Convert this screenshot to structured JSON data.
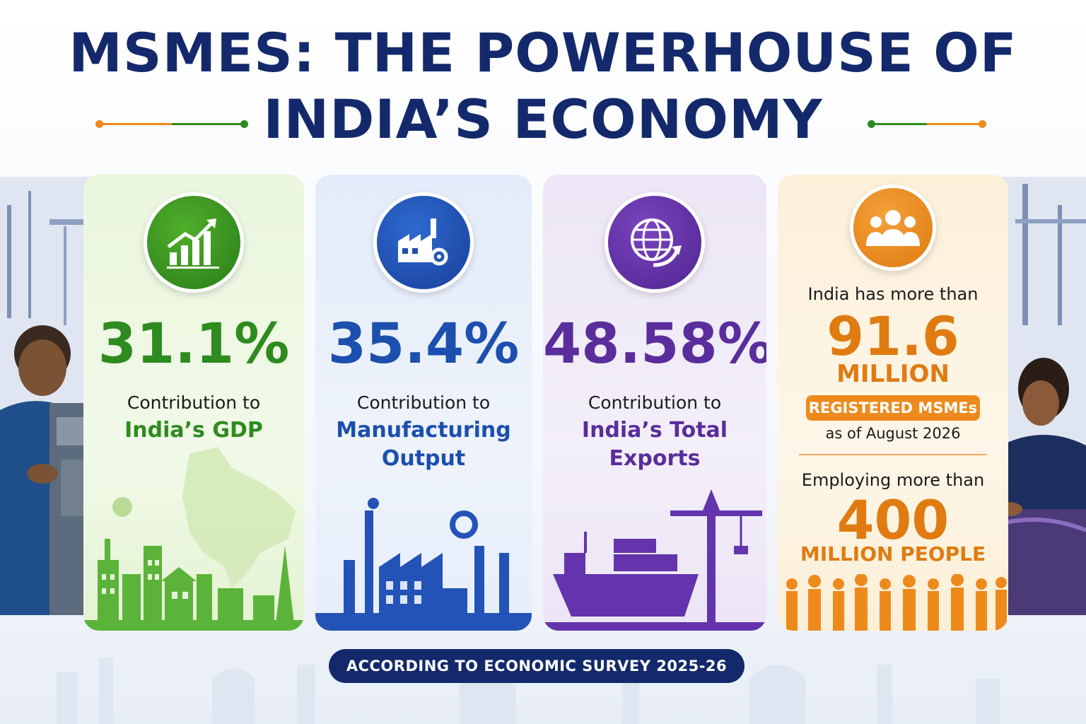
{
  "title": {
    "line1": "MSMEs: THE POWERHOUSE OF",
    "line2": "INDIA’S ECONOMY"
  },
  "colors": {
    "navy": "#13296b",
    "green": "#2e8b1f",
    "blue": "#1c4fae",
    "purple": "#5a2d9c",
    "orange": "#e07b12"
  },
  "cards": [
    {
      "icon": "growth-chart-icon",
      "value": "31.1%",
      "label": "Contribution to",
      "label_bold": "India’s GDP"
    },
    {
      "icon": "factory-gear-icon",
      "value": "35.4%",
      "label": "Contribution to",
      "label_bold_1": "Manufacturing",
      "label_bold_2": "Output"
    },
    {
      "icon": "globe-arrow-icon",
      "value": "48.58%",
      "label": "Contribution to",
      "label_bold_1": "India’s Total",
      "label_bold_2": "Exports"
    },
    {
      "icon": "people-group-icon",
      "intro": "India has more than",
      "value": "91.6",
      "unit": "MILLION",
      "badge": "REGISTERED MSMEs",
      "as_of": "as of August 2026",
      "intro2": "Employing more than",
      "value2": "400",
      "unit2": "MILLION PEOPLE"
    }
  ],
  "footer": "ACCORDING TO ECONOMIC SURVEY 2025-26"
}
